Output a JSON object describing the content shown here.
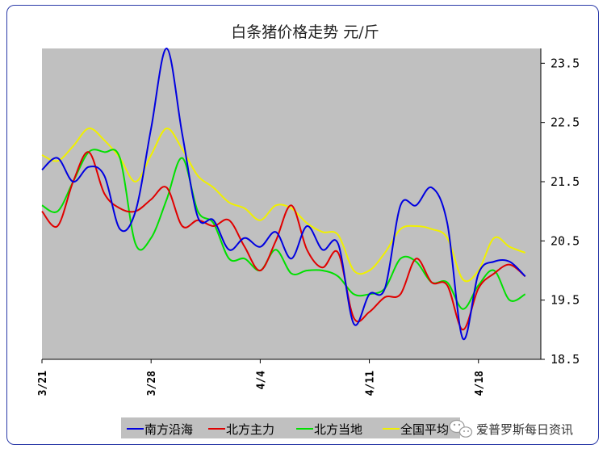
{
  "chart_data": {
    "type": "line",
    "title": "白条猪价格走势     元/斤",
    "y_axis_side": "right",
    "ylim": [
      18.5,
      23.75
    ],
    "yticks": [
      {
        "value": 23.5,
        "label": "23.5"
      },
      {
        "value": 22.5,
        "label": "22.5"
      },
      {
        "value": 21.5,
        "label": "21.5"
      },
      {
        "value": 20.5,
        "label": "20.5"
      },
      {
        "value": 19.5,
        "label": "19.5"
      },
      {
        "value": 18.5,
        "label": "18.5"
      }
    ],
    "xlim": [
      0,
      32
    ],
    "xticks": [
      {
        "value": 0,
        "label": "3/21"
      },
      {
        "value": 7,
        "label": "3/28"
      },
      {
        "value": 14,
        "label": "4/4"
      },
      {
        "value": 21,
        "label": "4/11"
      },
      {
        "value": 28,
        "label": "4/18"
      }
    ],
    "plot_background": "#c0c0c0",
    "grid": false,
    "legend_position": "bottom",
    "series": [
      {
        "name": "南方沿海",
        "color": "#0000e0",
        "x": [
          0,
          1,
          2,
          3,
          4,
          5,
          6,
          7,
          8,
          9,
          10,
          11,
          12,
          13,
          14,
          15,
          16,
          17,
          18,
          19,
          20,
          21,
          22,
          23,
          24,
          25,
          26,
          27,
          28,
          29,
          30,
          31
        ],
        "values": [
          21.7,
          21.9,
          21.5,
          21.75,
          21.6,
          20.7,
          21.0,
          22.4,
          23.8,
          22.3,
          20.9,
          20.85,
          20.35,
          20.55,
          20.4,
          20.65,
          20.2,
          20.75,
          20.35,
          20.45,
          19.1,
          19.6,
          19.7,
          21.1,
          21.1,
          21.4,
          20.8,
          18.85,
          19.95,
          20.15,
          20.15,
          19.9
        ]
      },
      {
        "name": "北方主力",
        "color": "#e00000",
        "x": [
          0,
          1,
          2,
          3,
          4,
          5,
          6,
          7,
          8,
          9,
          10,
          11,
          12,
          13,
          14,
          15,
          16,
          17,
          18,
          19,
          20,
          21,
          22,
          23,
          24,
          25,
          26,
          27,
          28,
          29,
          30,
          31
        ],
        "values": [
          21.0,
          20.75,
          21.5,
          22.0,
          21.3,
          21.05,
          21.0,
          21.2,
          21.4,
          20.75,
          20.85,
          20.75,
          20.85,
          20.4,
          20.0,
          20.5,
          21.1,
          20.35,
          20.05,
          20.3,
          19.2,
          19.3,
          19.55,
          19.6,
          20.2,
          19.8,
          19.75,
          19.0,
          19.7,
          19.95,
          20.1,
          19.9
        ]
      },
      {
        "name": "北方当地",
        "color": "#00e000",
        "x": [
          0,
          1,
          2,
          3,
          4,
          5,
          6,
          7,
          8,
          9,
          10,
          11,
          12,
          13,
          14,
          15,
          16,
          17,
          18,
          19,
          20,
          21,
          22,
          23,
          24,
          25,
          26,
          27,
          28,
          29,
          30,
          31
        ],
        "values": [
          21.1,
          21.0,
          21.5,
          22.0,
          22.0,
          21.9,
          20.45,
          20.55,
          21.2,
          21.9,
          21.0,
          20.8,
          20.2,
          20.2,
          20.0,
          20.35,
          19.95,
          20.0,
          20.0,
          19.9,
          19.6,
          19.6,
          19.7,
          20.2,
          20.15,
          19.8,
          19.8,
          19.35,
          19.75,
          20.0,
          19.5,
          19.6
        ]
      },
      {
        "name": "全国平均",
        "color": "#f0f000",
        "x": [
          0,
          1,
          2,
          3,
          4,
          5,
          6,
          7,
          8,
          9,
          10,
          11,
          12,
          13,
          14,
          15,
          16,
          17,
          18,
          19,
          20,
          21,
          22,
          23,
          24,
          25,
          26,
          27,
          28,
          29,
          30,
          31
        ],
        "values": [
          21.95,
          21.85,
          22.1,
          22.4,
          22.2,
          21.9,
          21.5,
          21.95,
          22.4,
          22.05,
          21.6,
          21.4,
          21.15,
          21.05,
          20.85,
          21.1,
          21.05,
          20.8,
          20.65,
          20.6,
          20.0,
          20.0,
          20.3,
          20.7,
          20.75,
          20.7,
          20.55,
          19.85,
          20.0,
          20.55,
          20.4,
          20.3
        ]
      }
    ]
  },
  "watermark": {
    "text": "爱普罗斯每日资讯",
    "icon": "wechat-icon"
  }
}
